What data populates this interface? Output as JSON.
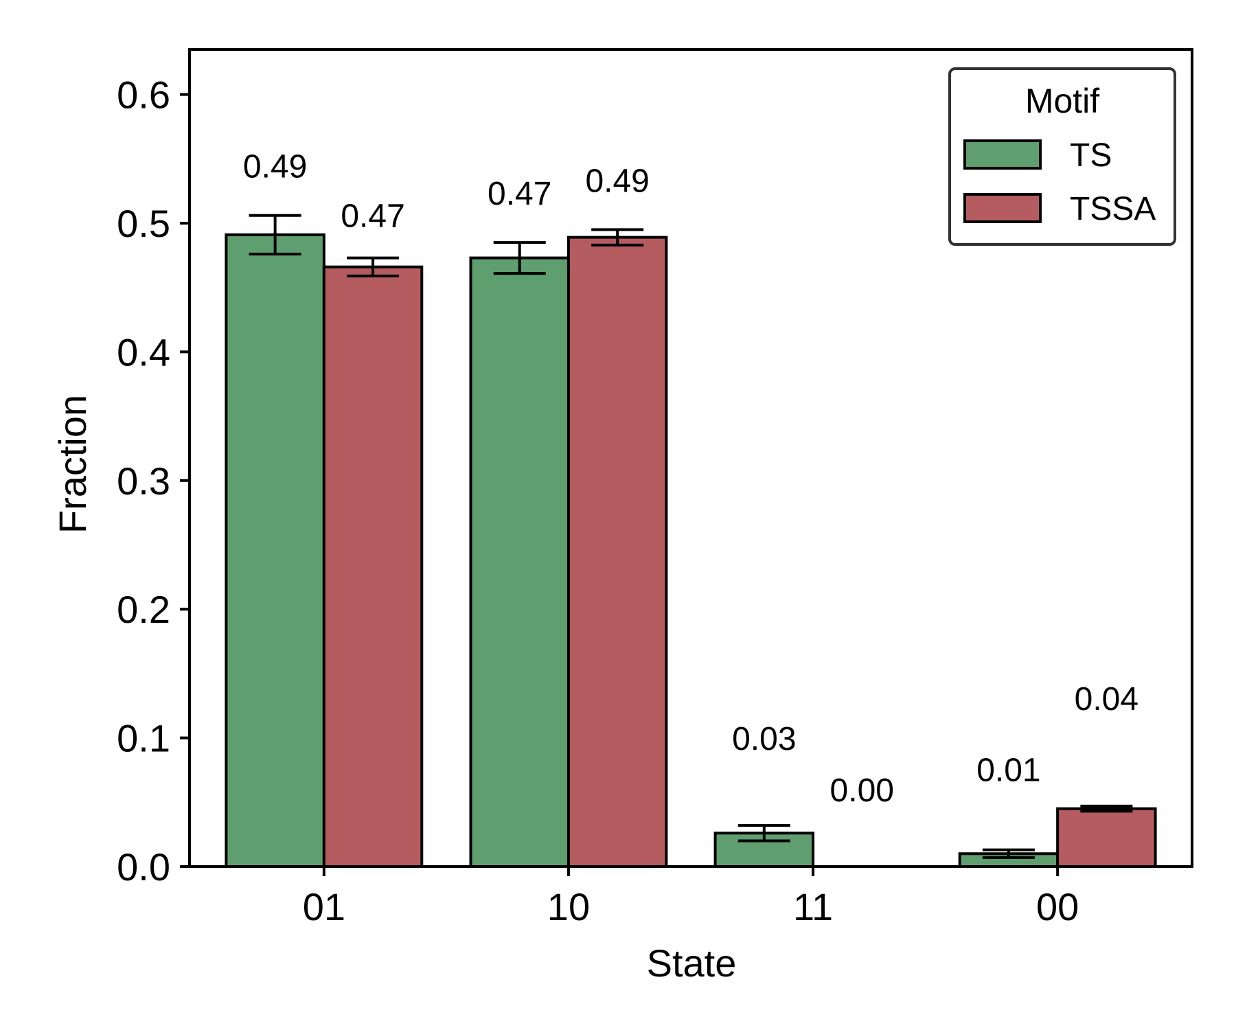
{
  "chart_data": {
    "type": "bar",
    "title": "",
    "xlabel": "State",
    "ylabel": "Fraction",
    "categories": [
      "01",
      "10",
      "11",
      "00"
    ],
    "ylim": [
      0,
      0.635
    ],
    "yticks": [
      0.0,
      0.1,
      0.2,
      0.3,
      0.4,
      0.5,
      0.6
    ],
    "ytick_labels": [
      "0.0",
      "0.1",
      "0.2",
      "0.3",
      "0.4",
      "0.5",
      "0.6"
    ],
    "grid": false,
    "legend": {
      "title": "Motif",
      "position": "top-right"
    },
    "series": [
      {
        "name": "TS",
        "color": "#5f9f6f",
        "values": [
          0.491,
          0.473,
          0.026,
          0.01
        ],
        "errors": [
          0.015,
          0.012,
          0.006,
          0.003
        ],
        "labels": [
          "0.49",
          "0.47",
          "0.03",
          "0.01"
        ]
      },
      {
        "name": "TSSA",
        "color": "#b45c60",
        "values": [
          0.466,
          0.489,
          0.0,
          0.045
        ],
        "errors": [
          0.007,
          0.006,
          0.0,
          0.002
        ],
        "labels": [
          "0.47",
          "0.49",
          "0.00",
          "0.04"
        ]
      }
    ]
  }
}
